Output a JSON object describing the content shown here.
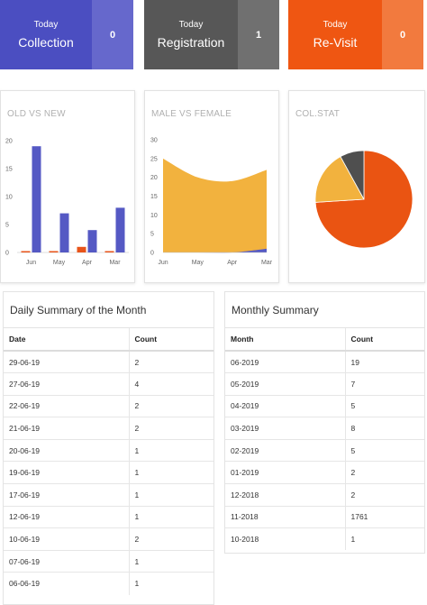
{
  "tiles": [
    {
      "small": "Today",
      "big": "Collection",
      "count": "0",
      "main_color": "#4b4ec1",
      "count_color": "#6668cc"
    },
    {
      "small": "Today",
      "big": "Registration",
      "count": "1",
      "main_color": "#575757",
      "count_color": "#707070"
    },
    {
      "small": "Today",
      "big": "Re-Visit",
      "count": "0",
      "main_color": "#ef5612",
      "count_color": "#f27a3e"
    }
  ],
  "chart_data": [
    {
      "type": "bar",
      "title": "OLD VS NEW",
      "categories": [
        "Jun",
        "May",
        "Apr",
        "Mar"
      ],
      "series": [
        {
          "values": [
            0,
            0,
            1,
            0
          ],
          "color": "#e8541a"
        },
        {
          "values": [
            19,
            7,
            4,
            8
          ],
          "color": "#5559c4"
        }
      ],
      "yticks": [
        "0",
        "5",
        "10",
        "15",
        "20"
      ],
      "ylim": [
        0,
        20
      ]
    },
    {
      "type": "area",
      "title": "MALE VS FEMALE",
      "categories": [
        "Jun",
        "May",
        "Apr",
        "Mar"
      ],
      "series": [
        {
          "values": [
            0,
            0,
            0,
            1
          ],
          "color": "#5559c4"
        },
        {
          "values": [
            25,
            20,
            19,
            22
          ],
          "color": "#f2b23e"
        }
      ],
      "yticks": [
        "0",
        "5",
        "10",
        "15",
        "20",
        "25",
        "30"
      ],
      "ylim": [
        0,
        30
      ]
    },
    {
      "type": "pie",
      "title": "COL.STAT",
      "slices": [
        {
          "value": 74,
          "color": "#ea5412"
        },
        {
          "value": 18,
          "color": "#f2b23e"
        },
        {
          "value": 8,
          "color": "#4f4f4f"
        }
      ]
    }
  ],
  "daily": {
    "title": "Daily Summary of the Month",
    "headers": [
      "Date",
      "Count"
    ],
    "rows": [
      [
        "29-06-19",
        "2"
      ],
      [
        "27-06-19",
        "4"
      ],
      [
        "22-06-19",
        "2"
      ],
      [
        "21-06-19",
        "2"
      ],
      [
        "20-06-19",
        "1"
      ],
      [
        "19-06-19",
        "1"
      ],
      [
        "17-06-19",
        "1"
      ],
      [
        "12-06-19",
        "1"
      ],
      [
        "10-06-19",
        "2"
      ],
      [
        "07-06-19",
        "1"
      ],
      [
        "06-06-19",
        "1"
      ]
    ]
  },
  "monthly": {
    "title": "Monthly Summary",
    "headers": [
      "Month",
      "Count"
    ],
    "rows": [
      [
        "06-2019",
        "19"
      ],
      [
        "05-2019",
        "7"
      ],
      [
        "04-2019",
        "5"
      ],
      [
        "03-2019",
        "8"
      ],
      [
        "02-2019",
        "5"
      ],
      [
        "01-2019",
        "2"
      ],
      [
        "12-2018",
        "2"
      ],
      [
        "11-2018",
        "1761"
      ],
      [
        "10-2018",
        "1"
      ]
    ]
  }
}
